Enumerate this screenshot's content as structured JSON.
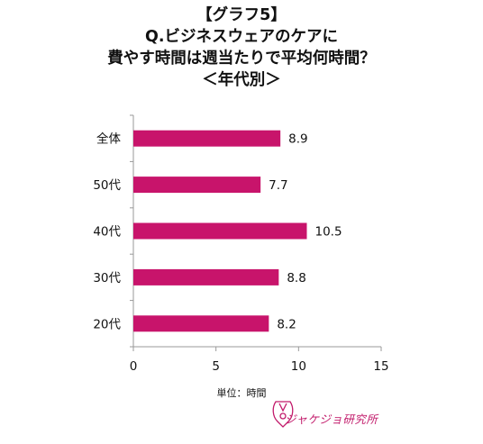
{
  "title_lines": [
    "【グラフ5】",
    "Q.ビジネスウェアのケアに",
    "費やす時間は週当たりで平均何時間？",
    "＜年代別＞"
  ],
  "unit_label": "単位：時間",
  "logo_text": "ジャケジョ研究所",
  "colors": {
    "bar": "#c8146b",
    "axis": "#999999",
    "logo": "#c21b6b"
  },
  "chart_data": {
    "type": "bar",
    "orientation": "horizontal",
    "categories": [
      "全体",
      "50代",
      "40代",
      "30代",
      "20代"
    ],
    "values": [
      8.9,
      7.7,
      10.5,
      8.8,
      8.2
    ],
    "value_labels": [
      "8.9",
      "7.7",
      "10.5",
      "8.8",
      "8.2"
    ],
    "xlim": [
      0,
      15
    ],
    "xticks": [
      0,
      5,
      10,
      15
    ],
    "grid": false
  }
}
